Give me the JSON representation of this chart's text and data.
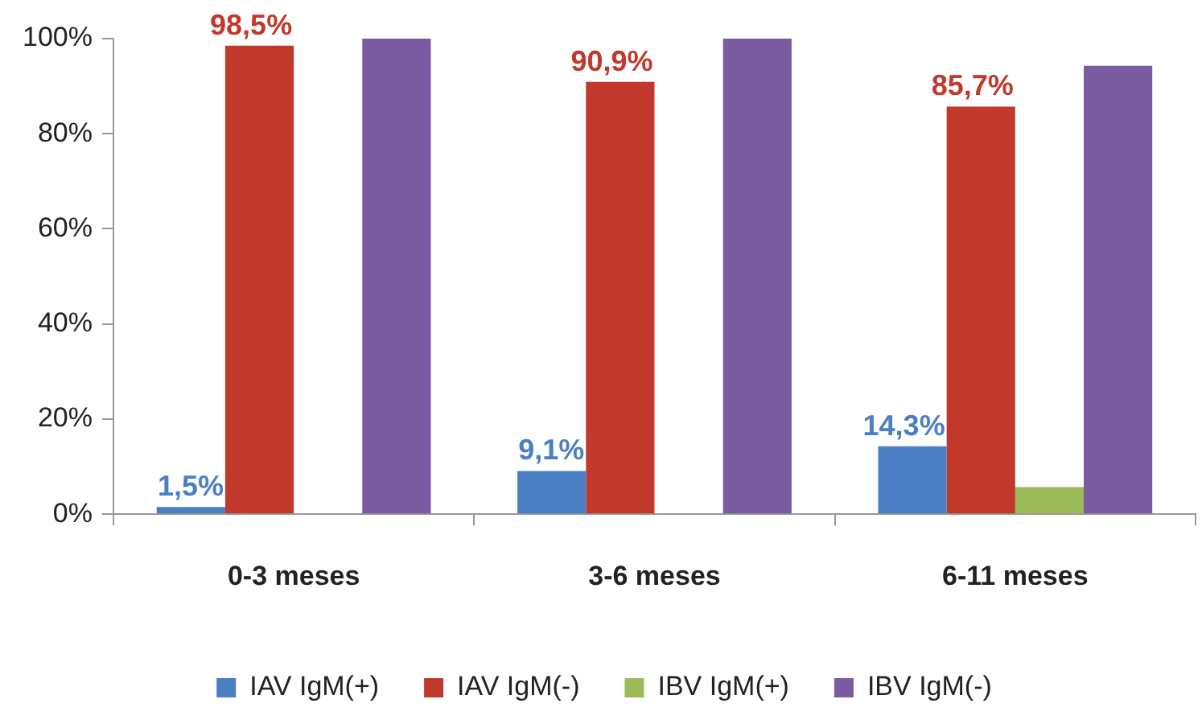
{
  "chart_data": {
    "type": "bar",
    "categories": [
      "0-3 meses",
      "3-6 meses",
      "6-11 meses"
    ],
    "series": [
      {
        "name": "IAV IgM(+)",
        "color": "#4a7fc4",
        "values": [
          1.5,
          9.1,
          14.3
        ],
        "value_labels": [
          "1,5%",
          "9,1%",
          "14,3%"
        ]
      },
      {
        "name": "IAV IgM(-)",
        "color": "#c0392b",
        "values": [
          98.5,
          90.9,
          85.7
        ],
        "value_labels": [
          "98,5%",
          "90,9%",
          "85,7%"
        ]
      },
      {
        "name": "IBV IgM(+)",
        "color": "#9bbb59",
        "values": [
          0,
          0,
          5.7
        ]
      },
      {
        "name": "IBV IgM(-)",
        "color": "#7a5aa0",
        "values": [
          100,
          100,
          94.3
        ]
      }
    ],
    "ylim": [
      0,
      100
    ],
    "yticks": [
      {
        "value": 0,
        "label": "0%"
      },
      {
        "value": 20,
        "label": "20%"
      },
      {
        "value": 40,
        "label": "40%"
      },
      {
        "value": 60,
        "label": "60%"
      },
      {
        "value": 80,
        "label": "80%"
      },
      {
        "value": 100,
        "label": "100%"
      }
    ],
    "legend": "bottom"
  }
}
